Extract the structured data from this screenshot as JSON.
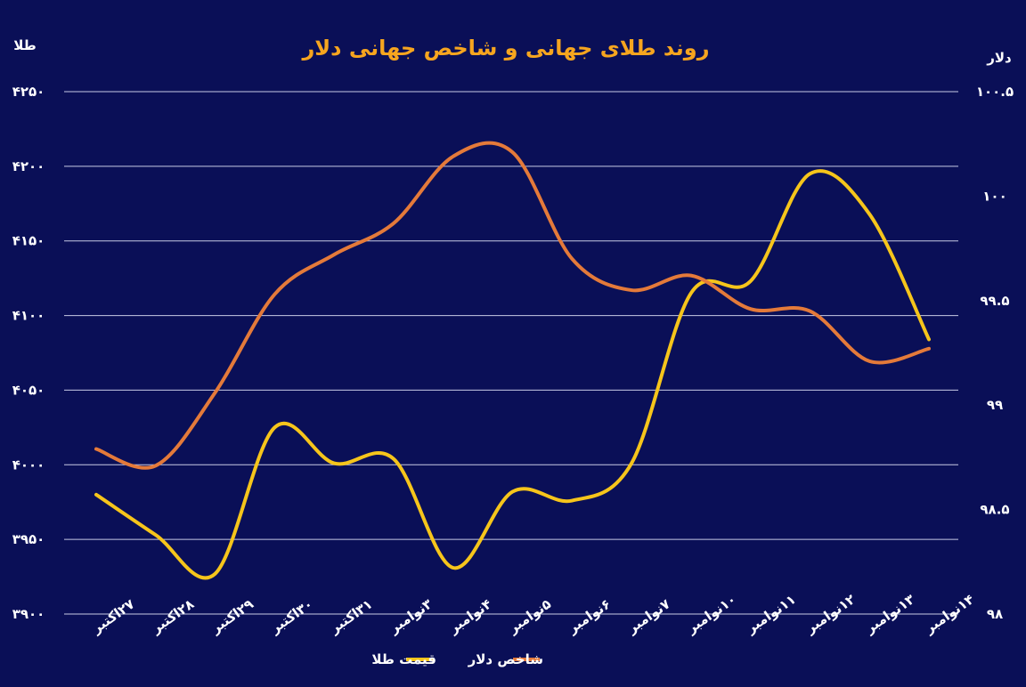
{
  "chart_data": {
    "type": "line",
    "title": "روند طلای جهانی و شاخص جهانی دلار",
    "y_label": "طلا",
    "y2_label": "دلار",
    "categories": [
      "۲۷اکتبر",
      "۲۸اکتبر",
      "۲۹اکتبر",
      "۳۰اکتبر",
      "۳۱اکتبر",
      "۳نوامبر",
      "۴نوامبر",
      "۵نوامبر",
      "۶نوامبر",
      "۷نوامبر",
      "۱۰نوامبر",
      "۱۱نوامبر",
      "۱۲نوامبر",
      "۱۳نوامبر",
      "۱۴نوامبر"
    ],
    "series": [
      {
        "name": "قیمت طلا",
        "color": "#f6c51b",
        "values": [
          3980,
          3953,
          3927,
          4025,
          4001,
          4004,
          3931,
          3982,
          3976,
          4001,
          4115,
          4123,
          4195,
          4168,
          4084
        ]
      },
      {
        "name": "شاخص دلار",
        "color": "#e47a3a",
        "axis": "y2",
        "values": [
          98.79,
          98.71,
          99.06,
          99.53,
          99.72,
          99.87,
          100.19,
          100.21,
          99.7,
          99.55,
          99.62,
          99.46,
          99.45,
          99.21,
          99.27
        ]
      }
    ],
    "ylim": [
      3900,
      4250
    ],
    "yticks": [
      {
        "value": 3900,
        "label": "۳۹۰۰"
      },
      {
        "value": 3950,
        "label": "۳۹۵۰"
      },
      {
        "value": 4000,
        "label": "۴۰۰۰"
      },
      {
        "value": 4050,
        "label": "۴۰۵۰"
      },
      {
        "value": 4100,
        "label": "۴۱۰۰"
      },
      {
        "value": 4150,
        "label": "۴۱۵۰"
      },
      {
        "value": 4200,
        "label": "۴۲۰۰"
      },
      {
        "value": 4250,
        "label": "۴۲۵۰"
      }
    ],
    "y2lim": [
      98,
      100.5
    ],
    "y2ticks": [
      {
        "value": 98,
        "label": "۹۸"
      },
      {
        "value": 98.5,
        "label": "۹۸.۵"
      },
      {
        "value": 99,
        "label": "۹۹"
      },
      {
        "value": 99.5,
        "label": "۹۹.۵"
      },
      {
        "value": 100,
        "label": "۱۰۰"
      },
      {
        "value": 100.5,
        "label": "۱۰۰.۵"
      }
    ],
    "grid": true,
    "legend": "bottom"
  }
}
